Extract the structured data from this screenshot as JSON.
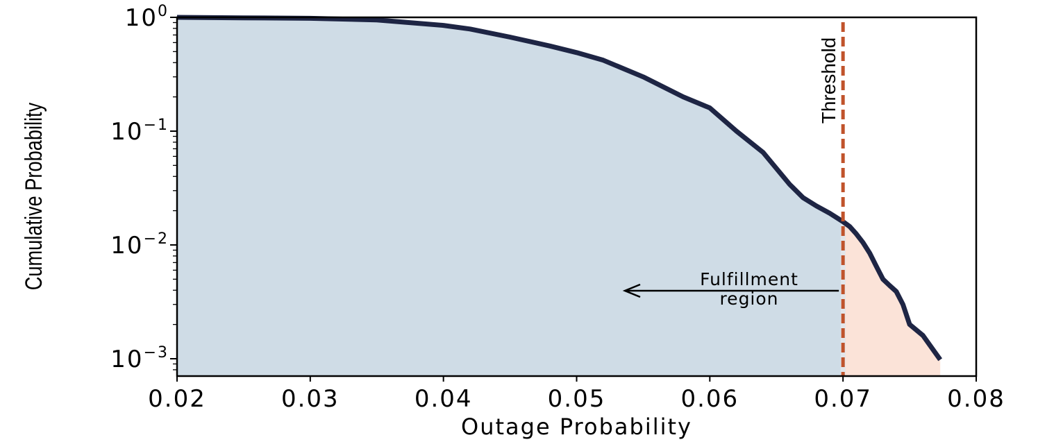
{
  "chart_data": {
    "type": "area",
    "title": "",
    "xlabel": "Outage Probability",
    "ylabel": "Cumulative Probability",
    "xlim": [
      0.02,
      0.08
    ],
    "ylim": [
      0.00075,
      1.0
    ],
    "y_scale": "log",
    "x_ticks": [
      "0.02",
      "0.03",
      "0.04",
      "0.05",
      "0.06",
      "0.07",
      "0.08"
    ],
    "y_ticks": [
      {
        "base": "10",
        "exp": "0",
        "value": 1
      },
      {
        "base": "10",
        "exp": "−1",
        "value": 0.1
      },
      {
        "base": "10",
        "exp": "−2",
        "value": 0.01
      },
      {
        "base": "10",
        "exp": "−3",
        "value": 0.001
      }
    ],
    "series": [
      {
        "x": [
          0.02,
          0.025,
          0.03,
          0.035,
          0.04,
          0.042,
          0.045,
          0.048,
          0.05,
          0.052,
          0.055,
          0.058,
          0.06,
          0.062,
          0.064,
          0.065,
          0.066,
          0.067,
          0.068,
          0.069,
          0.07,
          0.0705,
          0.071,
          0.0715,
          0.072,
          0.0725,
          0.073,
          0.0735,
          0.074,
          0.0745,
          0.075,
          0.076,
          0.0773
        ],
        "y": [
          1.0,
          0.99,
          0.98,
          0.95,
          0.85,
          0.79,
          0.67,
          0.56,
          0.49,
          0.42,
          0.3,
          0.2,
          0.16,
          0.1,
          0.065,
          0.047,
          0.034,
          0.026,
          0.022,
          0.019,
          0.016,
          0.0145,
          0.0125,
          0.0105,
          0.0085,
          0.0065,
          0.005,
          0.0044,
          0.0039,
          0.003,
          0.002,
          0.0016,
          0.00098
        ]
      }
    ],
    "threshold": {
      "x": 0.07,
      "label": "Threshold"
    },
    "annotation": {
      "lines": [
        "Fulfillment",
        "region"
      ]
    },
    "colors": {
      "line": "#1e2544",
      "fill_left": "#cfdce6",
      "fill_right": "#fbe3d8",
      "threshold": "#c0532b",
      "boundary": "#e2e6ea"
    },
    "grid": false,
    "legend": "none"
  }
}
